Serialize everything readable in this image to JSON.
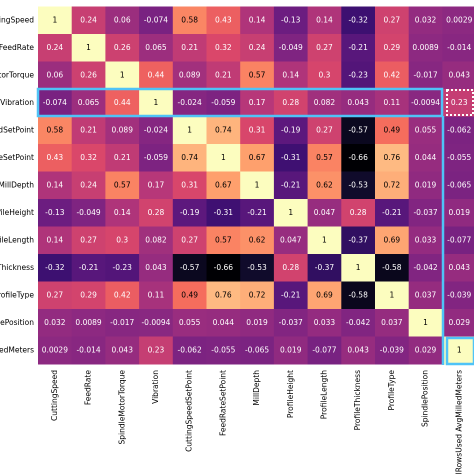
{
  "chart_data": {
    "type": "heatmap",
    "colormap": "magma",
    "y_categories": [
      "ttingSpeed",
      "FeedRate",
      "otorTorque",
      "Vibration",
      "edSetPoint",
      "ceSetPoint",
      "MillDepth",
      "ofileHeight",
      "ofileLength",
      "Thickness",
      "ProfileType",
      "dlePosition",
      "lledMeters"
    ],
    "x_categories": [
      "CuttingSpeed",
      "FeedRate",
      "SpindleMotorTorque",
      "Vibration",
      "CuttingSpeedSetPoint",
      "FeedRateSetPoint",
      "MillDepth",
      "ProfileHeight",
      "ProfileLength",
      "ProfileThickness",
      "ProfileType",
      "SpindlePosition",
      "ToolRowsUsed AvgMilledMeters"
    ],
    "values": [
      [
        1,
        0.24,
        0.06,
        -0.074,
        0.58,
        0.43,
        0.14,
        -0.13,
        0.14,
        -0.32,
        0.27,
        0.032,
        0.0029
      ],
      [
        0.24,
        1,
        0.26,
        0.065,
        0.21,
        0.32,
        0.24,
        -0.049,
        0.27,
        -0.21,
        0.29,
        0.0089,
        -0.014
      ],
      [
        0.06,
        0.26,
        1,
        0.44,
        0.089,
        0.21,
        0.57,
        0.14,
        0.3,
        -0.23,
        0.42,
        -0.017,
        0.043
      ],
      [
        -0.074,
        0.065,
        0.44,
        1,
        -0.024,
        -0.059,
        0.17,
        0.28,
        0.082,
        0.043,
        0.11,
        -0.0094,
        0.23
      ],
      [
        0.58,
        0.21,
        0.089,
        -0.024,
        1,
        0.74,
        0.31,
        -0.19,
        0.27,
        -0.57,
        0.49,
        0.055,
        -0.062
      ],
      [
        0.43,
        0.32,
        0.21,
        -0.059,
        0.74,
        1,
        0.67,
        -0.31,
        0.57,
        -0.66,
        0.76,
        0.044,
        -0.055
      ],
      [
        0.14,
        0.24,
        0.57,
        0.17,
        0.31,
        0.67,
        1,
        -0.21,
        0.62,
        -0.53,
        0.72,
        0.019,
        -0.065
      ],
      [
        -0.13,
        -0.049,
        0.14,
        0.28,
        -0.19,
        -0.31,
        -0.21,
        1,
        0.047,
        0.28,
        -0.21,
        -0.037,
        0.019
      ],
      [
        0.14,
        0.27,
        0.3,
        0.082,
        0.27,
        0.57,
        0.62,
        0.047,
        1,
        -0.37,
        0.69,
        0.033,
        -0.077
      ],
      [
        -0.32,
        -0.21,
        -0.23,
        0.043,
        -0.57,
        -0.66,
        -0.53,
        0.28,
        -0.37,
        1,
        -0.58,
        -0.042,
        0.043
      ],
      [
        0.27,
        0.29,
        0.42,
        0.11,
        0.49,
        0.76,
        0.72,
        -0.21,
        0.69,
        -0.58,
        1,
        0.037,
        -0.039
      ],
      [
        0.032,
        0.0089,
        -0.017,
        -0.0094,
        0.055,
        0.044,
        0.019,
        -0.037,
        0.033,
        -0.042,
        0.037,
        1,
        0.029
      ],
      [
        0.0029,
        -0.014,
        0.043,
        0.23,
        -0.062,
        -0.055,
        -0.065,
        0.019,
        -0.077,
        0.043,
        -0.039,
        0.029,
        1
      ]
    ]
  }
}
